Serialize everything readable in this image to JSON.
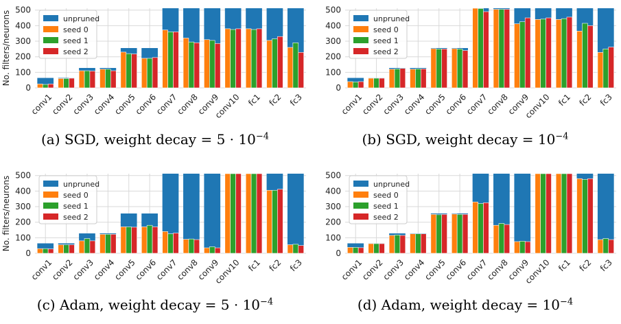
{
  "chart_data": [
    {
      "type": "bar",
      "ylabel": "No. filters/neurons",
      "ylim": [
        0,
        512
      ],
      "yticks": [
        0,
        100,
        200,
        300,
        400,
        500
      ],
      "grid": true,
      "legend_position": "top-left",
      "categories": [
        "conv1",
        "conv2",
        "conv3",
        "conv4",
        "conv5",
        "conv6",
        "conv7",
        "conv8",
        "conv9",
        "conv10",
        "fc1",
        "fc2",
        "fc3"
      ],
      "series": [
        {
          "name": "unpruned",
          "values": [
            64,
            64,
            128,
            128,
            256,
            256,
            512,
            512,
            512,
            512,
            512,
            512,
            512
          ]
        },
        {
          "name": "seed 0",
          "values": [
            25,
            60,
            110,
            120,
            230,
            190,
            372,
            320,
            310,
            380,
            380,
            305,
            260
          ]
        },
        {
          "name": "seed 1",
          "values": [
            22,
            60,
            110,
            120,
            220,
            190,
            360,
            295,
            305,
            375,
            375,
            315,
            290
          ]
        },
        {
          "name": "seed 2",
          "values": [
            25,
            62,
            108,
            110,
            218,
            195,
            360,
            290,
            285,
            380,
            380,
            330,
            228
          ]
        }
      ],
      "caption": {
        "prefix": "(a) SGD, weight decay = ",
        "base": "5 · 10",
        "exp": "−4"
      }
    },
    {
      "type": "bar",
      "ylabel": "",
      "ylim": [
        0,
        512
      ],
      "yticks": [
        0,
        100,
        200,
        300,
        400,
        500
      ],
      "grid": true,
      "legend_position": "top-left",
      "categories": [
        "conv1",
        "conv2",
        "conv3",
        "conv4",
        "conv5",
        "conv6",
        "conv7",
        "conv8",
        "conv9",
        "conv10",
        "fc1",
        "fc2",
        "fc3"
      ],
      "series": [
        {
          "name": "unpruned",
          "values": [
            64,
            64,
            128,
            128,
            256,
            256,
            512,
            512,
            512,
            512,
            512,
            512,
            512
          ]
        },
        {
          "name": "seed 0",
          "values": [
            40,
            62,
            120,
            120,
            252,
            252,
            512,
            505,
            412,
            440,
            440,
            365,
            228
          ]
        },
        {
          "name": "seed 1",
          "values": [
            38,
            62,
            122,
            122,
            250,
            250,
            510,
            505,
            425,
            442,
            445,
            415,
            250
          ]
        },
        {
          "name": "seed 2",
          "values": [
            40,
            62,
            125,
            122,
            250,
            240,
            490,
            505,
            450,
            450,
            455,
            400,
            262
          ]
        }
      ],
      "caption": {
        "prefix": "(b) SGD, weight decay = ",
        "base": "10",
        "exp": "−4"
      }
    },
    {
      "type": "bar",
      "ylabel": "No. filters/neurons",
      "ylim": [
        0,
        512
      ],
      "yticks": [
        0,
        100,
        200,
        300,
        400,
        500
      ],
      "grid": true,
      "legend_position": "top-left",
      "categories": [
        "conv1",
        "conv2",
        "conv3",
        "conv4",
        "conv5",
        "conv6",
        "conv7",
        "conv8",
        "conv9",
        "conv10",
        "fc1",
        "fc2",
        "fc3"
      ],
      "series": [
        {
          "name": "unpruned",
          "values": [
            64,
            64,
            128,
            128,
            256,
            256,
            512,
            512,
            512,
            512,
            512,
            512,
            512
          ]
        },
        {
          "name": "seed 0",
          "values": [
            30,
            55,
            80,
            122,
            170,
            170,
            140,
            90,
            35,
            512,
            512,
            405,
            55
          ]
        },
        {
          "name": "seed 1",
          "values": [
            30,
            55,
            95,
            122,
            170,
            180,
            125,
            92,
            42,
            512,
            512,
            405,
            58
          ]
        },
        {
          "name": "seed 2",
          "values": [
            28,
            55,
            80,
            122,
            168,
            170,
            130,
            88,
            35,
            512,
            512,
            412,
            50
          ]
        }
      ],
      "caption": {
        "prefix": "(c) Adam, weight decay = ",
        "base": "5 · 10",
        "exp": "−4"
      }
    },
    {
      "type": "bar",
      "ylabel": "",
      "ylim": [
        0,
        512
      ],
      "yticks": [
        0,
        100,
        200,
        300,
        400,
        500
      ],
      "grid": true,
      "legend_position": "top-left",
      "categories": [
        "conv1",
        "conv2",
        "conv3",
        "conv4",
        "conv5",
        "conv6",
        "conv7",
        "conv8",
        "conv9",
        "conv10",
        "fc1",
        "fc2",
        "fc3"
      ],
      "series": [
        {
          "name": "unpruned",
          "values": [
            64,
            64,
            128,
            128,
            256,
            256,
            512,
            512,
            512,
            512,
            512,
            512,
            512
          ]
        },
        {
          "name": "seed 0",
          "values": [
            38,
            62,
            115,
            125,
            250,
            252,
            330,
            180,
            75,
            512,
            512,
            480,
            88
          ]
        },
        {
          "name": "seed 1",
          "values": [
            38,
            62,
            118,
            125,
            248,
            250,
            320,
            192,
            78,
            512,
            512,
            475,
            95
          ]
        },
        {
          "name": "seed 2",
          "values": [
            36,
            62,
            115,
            125,
            250,
            250,
            325,
            185,
            75,
            512,
            512,
            480,
            88
          ]
        }
      ],
      "caption": {
        "prefix": "(d) Adam, weight decay = ",
        "base": "10",
        "exp": "−4"
      }
    }
  ],
  "colors": {
    "unpruned": "#1f77b4",
    "seed 0": "#ff7f0e",
    "seed 1": "#2ca02c",
    "seed 2": "#d62728",
    "grid": "#d9d9d9",
    "axis_background": "#ffffff"
  }
}
